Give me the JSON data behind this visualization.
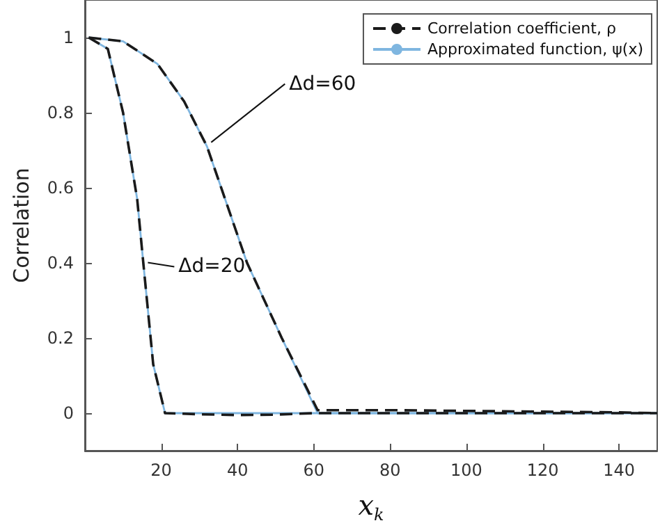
{
  "chart_data": {
    "type": "line",
    "xlabel": "x$_{k}$",
    "ylabel": "Correlation",
    "xlim": [
      0,
      150
    ],
    "ylim": [
      -0.1,
      1.1
    ],
    "xticks": [
      20,
      40,
      60,
      80,
      100,
      120,
      140
    ],
    "yticks": [
      0,
      0.2,
      0.4,
      0.6,
      0.8,
      1
    ],
    "legend": "top right",
    "marker": "none",
    "grid": false,
    "series": [
      {
        "name": "Approximated function, ψ(x)",
        "color": "#7fb6e0",
        "line_style": "solid",
        "x": [
          1,
          6,
          10,
          13.7,
          15.4,
          17.9,
          21,
          30,
          40,
          50,
          60,
          80,
          100,
          120,
          150
        ],
        "values": [
          1,
          0.97,
          0.8,
          0.57,
          0.39,
          0.13,
          0,
          0,
          0,
          0,
          0,
          0,
          0,
          0,
          0
        ]
      },
      {
        "color": "#7fb6e0",
        "line_style": "solid",
        "x": [
          1,
          10,
          19,
          26,
          32,
          42.5,
          51.6,
          61,
          80,
          100,
          120,
          150
        ],
        "values": [
          1,
          0.99,
          0.93,
          0.83,
          0.71,
          0.4,
          0.2,
          0,
          0,
          0,
          0,
          0
        ]
      },
      {
        "name": "Correlation coefficient, ρ",
        "color": "#1a1a1a",
        "line_style": "dashed",
        "x": [
          1,
          6,
          10,
          13.7,
          15.4,
          17.9,
          21,
          30,
          40,
          50,
          60,
          80,
          100,
          120,
          150
        ],
        "values": [
          1,
          0.97,
          0.8,
          0.57,
          0.39,
          0.13,
          0,
          -0.003,
          -0.005,
          -0.004,
          0,
          0,
          0,
          0,
          0
        ]
      },
      {
        "color": "#1a1a1a",
        "line_style": "dashed",
        "x": [
          1,
          10,
          19,
          26,
          32,
          42.5,
          51.6,
          61,
          80,
          100,
          120,
          140,
          150
        ],
        "values": [
          1,
          0.99,
          0.93,
          0.83,
          0.71,
          0.4,
          0.2,
          0.008,
          0.008,
          0.006,
          0.004,
          0.002,
          0
        ]
      }
    ],
    "annotations": [
      {
        "text": "Δd=60",
        "x": 32,
        "y": 0.71
      },
      {
        "text": "Δd=20",
        "x": 15.4,
        "y": 0.39
      }
    ]
  }
}
